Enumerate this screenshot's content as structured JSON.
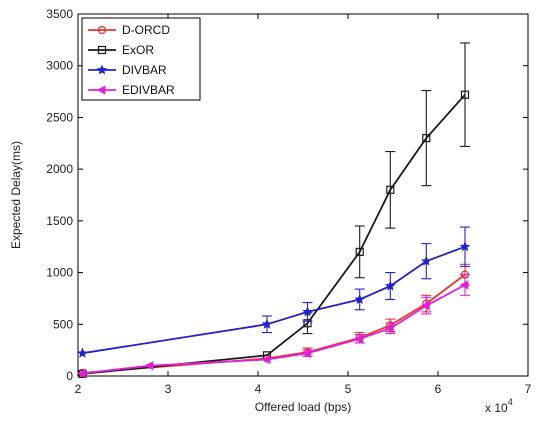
{
  "chart_data": {
    "type": "line",
    "xlabel": "Offered load (bps)",
    "ylabel": "Expected Delay(ms)",
    "x_multiplier_label": "x 10",
    "x_multiplier_exponent": "4",
    "xlim": [
      2,
      7
    ],
    "ylim": [
      0,
      3500
    ],
    "x_ticks": [
      2,
      3,
      4,
      5,
      6,
      7
    ],
    "y_ticks": [
      0,
      500,
      1000,
      1500,
      2000,
      2500,
      3000,
      3500
    ],
    "grid": false,
    "legend_position": "top-left",
    "series": [
      {
        "name": "D-ORCD",
        "color": "#e8342c",
        "marker": "circle",
        "x": [
          2.05,
          4.1,
          4.55,
          5.13,
          5.47,
          5.87,
          6.3
        ],
        "y": [
          30,
          170,
          230,
          370,
          490,
          700,
          980
        ],
        "err": [
          0,
          0,
          40,
          50,
          60,
          80,
          100
        ]
      },
      {
        "name": "ExOR",
        "color": "#1a1a1a",
        "marker": "square",
        "x": [
          2.05,
          4.1,
          4.55,
          5.13,
          5.47,
          5.87,
          6.3
        ],
        "y": [
          20,
          200,
          510,
          1200,
          1800,
          2300,
          2720
        ],
        "err": [
          0,
          0,
          100,
          250,
          370,
          460,
          500
        ]
      },
      {
        "name": "DIVBAR",
        "color": "#2222cc",
        "marker": "star",
        "x": [
          2.05,
          4.1,
          4.55,
          5.13,
          5.47,
          5.87,
          6.3
        ],
        "y": [
          220,
          500,
          620,
          740,
          870,
          1110,
          1250
        ],
        "err": [
          0,
          80,
          90,
          100,
          130,
          170,
          190
        ]
      },
      {
        "name": "EDIVBAR",
        "color": "#e020d8",
        "marker": "triangle-left",
        "x": [
          2.05,
          2.8,
          4.1,
          4.55,
          5.13,
          5.47,
          5.87,
          6.3
        ],
        "y": [
          25,
          100,
          160,
          220,
          360,
          460,
          680,
          880
        ],
        "err": [
          0,
          0,
          0,
          30,
          40,
          50,
          80,
          100
        ]
      }
    ]
  }
}
